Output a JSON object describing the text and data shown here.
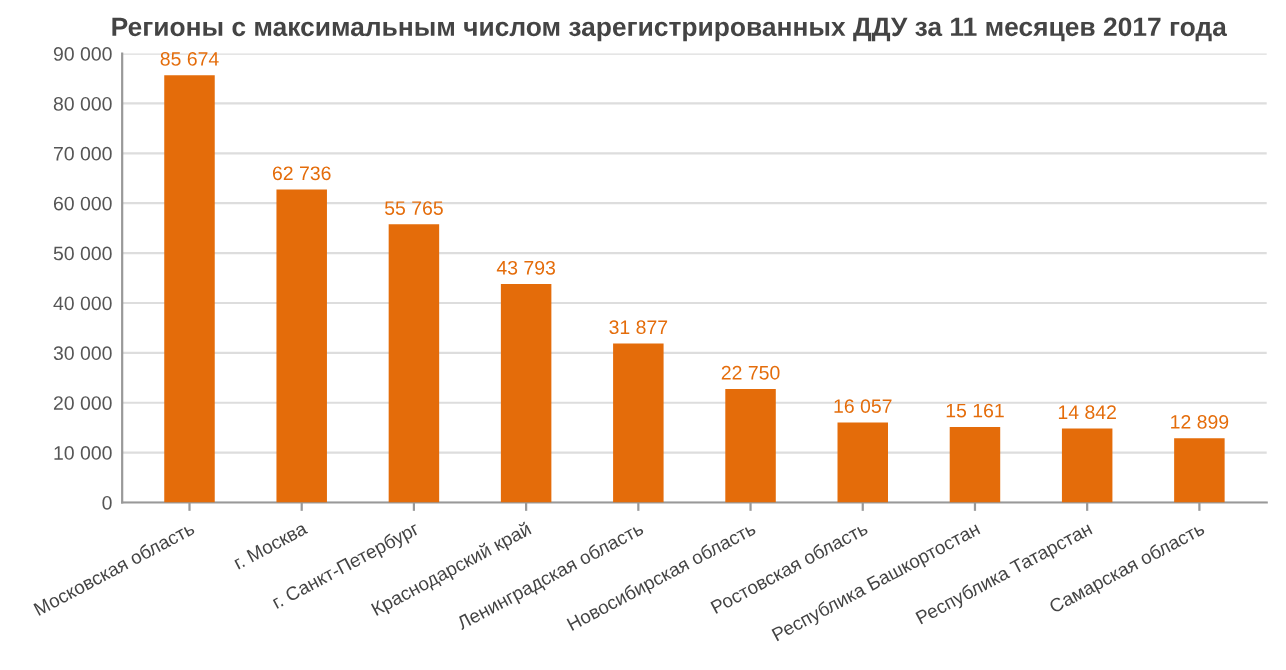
{
  "chart_data": {
    "type": "bar",
    "title": "Регионы с максимальным числом зарегистрированных ДДУ за 11 месяцев 2017 года",
    "categories": [
      "Московская область",
      "г. Москва",
      "г. Санкт-Петербург",
      "Краснодарский край",
      "Ленинградская область",
      "Новосибирская область",
      "Ростовская область",
      "Республика Башкортостан",
      "Республика Татарстан",
      "Самарская область"
    ],
    "values": [
      85674,
      62736,
      55765,
      43793,
      31877,
      22750,
      16057,
      15161,
      14842,
      12899
    ],
    "value_labels": [
      "85 674",
      "62 736",
      "55 765",
      "43 793",
      "31 877",
      "22 750",
      "16 057",
      "15 161",
      "14 842",
      "12 899"
    ],
    "color": "#e46c0a",
    "ylim": [
      0,
      90000
    ],
    "yticks": [
      0,
      {
        "value": 10000,
        "label": "10 000"
      },
      {
        "value": 20000,
        "label": "20 000"
      },
      {
        "value": 30000,
        "label": "30 000"
      },
      {
        "value": 40000,
        "label": "40 000"
      },
      {
        "value": 50000,
        "label": "50 000"
      },
      {
        "value": 60000,
        "label": "60 000"
      },
      {
        "value": 70000,
        "label": "70 000"
      },
      {
        "value": 80000,
        "label": "80 000"
      },
      {
        "value": 90000,
        "label": "90 000"
      }
    ],
    "grid": "y"
  }
}
